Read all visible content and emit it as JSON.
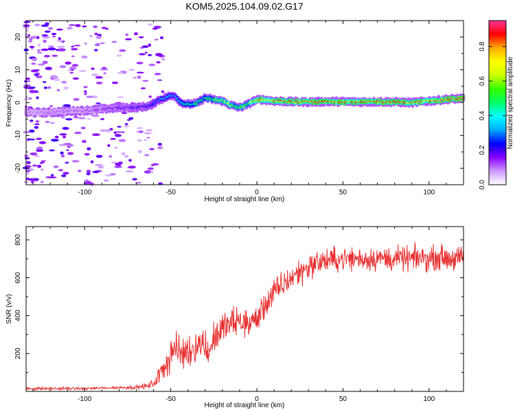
{
  "title": "KOM5.2025.104.09.02.G17",
  "chart_data": [
    {
      "type": "heatmap",
      "xlabel": "Height of straight line (km)",
      "ylabel": "Frequency (Hz)",
      "xlim": [
        -134,
        120
      ],
      "ylim": [
        -25,
        25
      ],
      "xticks": [
        -100,
        -50,
        0,
        50,
        100
      ],
      "xtick_labels": [
        "-100",
        "-50",
        "0",
        "50",
        "100"
      ],
      "yticks": [
        -20,
        -10,
        0,
        10,
        20
      ],
      "ytick_labels": [
        "-20",
        "-10",
        "0",
        "10",
        "20"
      ],
      "colorbar": {
        "label": "Normalized spectral amplitude",
        "range": [
          0,
          0.95
        ],
        "ticks": [
          0.0,
          0.2,
          0.4,
          0.6,
          0.8
        ],
        "tick_labels": [
          "0.0",
          "0.2",
          "0.4",
          "0.6",
          "0.8"
        ],
        "colors": [
          "#ffffff",
          "#cc99ff",
          "#8800ff",
          "#0000ff",
          "#00aaff",
          "#00ffff",
          "#00ff66",
          "#33ff00",
          "#ccff00",
          "#ffff00",
          "#ffaa00",
          "#ff0000",
          "#ff3399"
        ]
      },
      "ridge": {
        "x": [
          -130,
          -120,
          -110,
          -100,
          -90,
          -80,
          -70,
          -62,
          -58,
          -52,
          -48,
          -44,
          -40,
          -35,
          -30,
          -26,
          -20,
          -15,
          -10,
          -5,
          -2,
          2,
          10,
          20,
          30,
          40,
          50,
          60,
          70,
          80,
          90,
          100,
          110,
          120
        ],
        "frequency": [
          -3,
          -3,
          -2.6,
          -2.4,
          -2,
          -1.5,
          -1.5,
          -1,
          0.5,
          1.8,
          2.2,
          0,
          -0.5,
          -0.2,
          1.5,
          1,
          0.5,
          -0.8,
          -1.5,
          -0.5,
          0.5,
          1,
          0.5,
          0.3,
          0.2,
          0.3,
          0.3,
          0.2,
          0.3,
          0.2,
          0,
          0.5,
          1,
          1.3
        ],
        "amplitude": [
          0.1,
          0.12,
          0.12,
          0.12,
          0.15,
          0.18,
          0.2,
          0.25,
          0.3,
          0.35,
          0.3,
          0.4,
          0.45,
          0.5,
          0.45,
          0.55,
          0.6,
          0.62,
          0.55,
          0.6,
          0.7,
          0.75,
          0.8,
          0.82,
          0.85,
          0.9,
          0.88,
          0.85,
          0.88,
          0.86,
          0.82,
          0.88,
          0.9,
          0.93
        ]
      }
    },
    {
      "type": "line",
      "xlabel": "Height of straight line (km)",
      "ylabel": "SNR (v/v)",
      "xlim": [
        -134,
        120
      ],
      "ylim": [
        0,
        870
      ],
      "xticks": [
        -100,
        -50,
        0,
        50,
        100
      ],
      "xtick_labels": [
        "-100",
        "-50",
        "0",
        "50",
        "100"
      ],
      "yticks": [
        200,
        400,
        600,
        800
      ],
      "ytick_labels": [
        "200",
        "400",
        "600",
        "800"
      ],
      "color": "#e83030",
      "series": [
        {
          "name": "SNR",
          "x": [
            -134,
            -120,
            -110,
            -100,
            -90,
            -80,
            -70,
            -62,
            -58,
            -55,
            -52,
            -50,
            -48,
            -45,
            -40,
            -35,
            -30,
            -28,
            -25,
            -20,
            -15,
            -10,
            -5,
            0,
            5,
            10,
            15,
            20,
            25,
            30,
            35,
            40,
            45,
            50,
            55,
            60,
            65,
            70,
            75,
            80,
            85,
            90,
            95,
            100,
            105,
            110,
            115,
            120
          ],
          "mean": [
            15,
            15,
            15,
            15,
            18,
            20,
            22,
            30,
            60,
            120,
            160,
            200,
            230,
            200,
            210,
            250,
            250,
            200,
            280,
            330,
            360,
            370,
            360,
            380,
            460,
            520,
            560,
            600,
            630,
            660,
            680,
            690,
            695,
            700,
            700,
            700,
            700,
            705,
            700,
            700,
            700,
            700,
            705,
            700,
            710,
            705,
            700,
            700
          ],
          "spread": [
            8,
            8,
            8,
            8,
            8,
            8,
            10,
            20,
            40,
            60,
            90,
            110,
            110,
            100,
            100,
            100,
            100,
            80,
            90,
            90,
            90,
            90,
            90,
            80,
            80,
            80,
            80,
            80,
            80,
            80,
            70,
            70,
            70,
            70,
            70,
            70,
            70,
            70,
            70,
            70,
            70,
            70,
            70,
            70,
            70,
            70,
            70,
            70
          ]
        }
      ]
    }
  ]
}
